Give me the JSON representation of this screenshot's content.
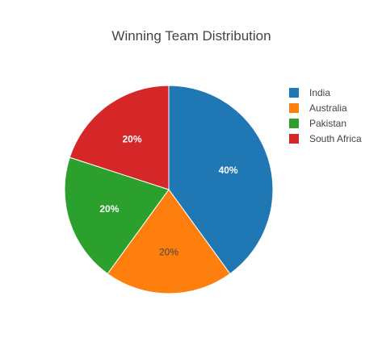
{
  "chart_data": {
    "type": "pie",
    "title": "Winning Team Distribution",
    "labels": [
      "India",
      "Australia",
      "Pakistan",
      "South Africa"
    ],
    "values": [
      40,
      20,
      20,
      20
    ],
    "percent_labels": [
      "40%",
      "20%",
      "20%",
      "20%"
    ],
    "colors": [
      "#1f77b4",
      "#ff7f0e",
      "#2ca02c",
      "#d62728"
    ],
    "slice_label_colors": [
      "#ffffff",
      "#444444",
      "#ffffff",
      "#ffffff"
    ],
    "legend_position": "top-right",
    "direction": "clockwise",
    "start": "top"
  }
}
